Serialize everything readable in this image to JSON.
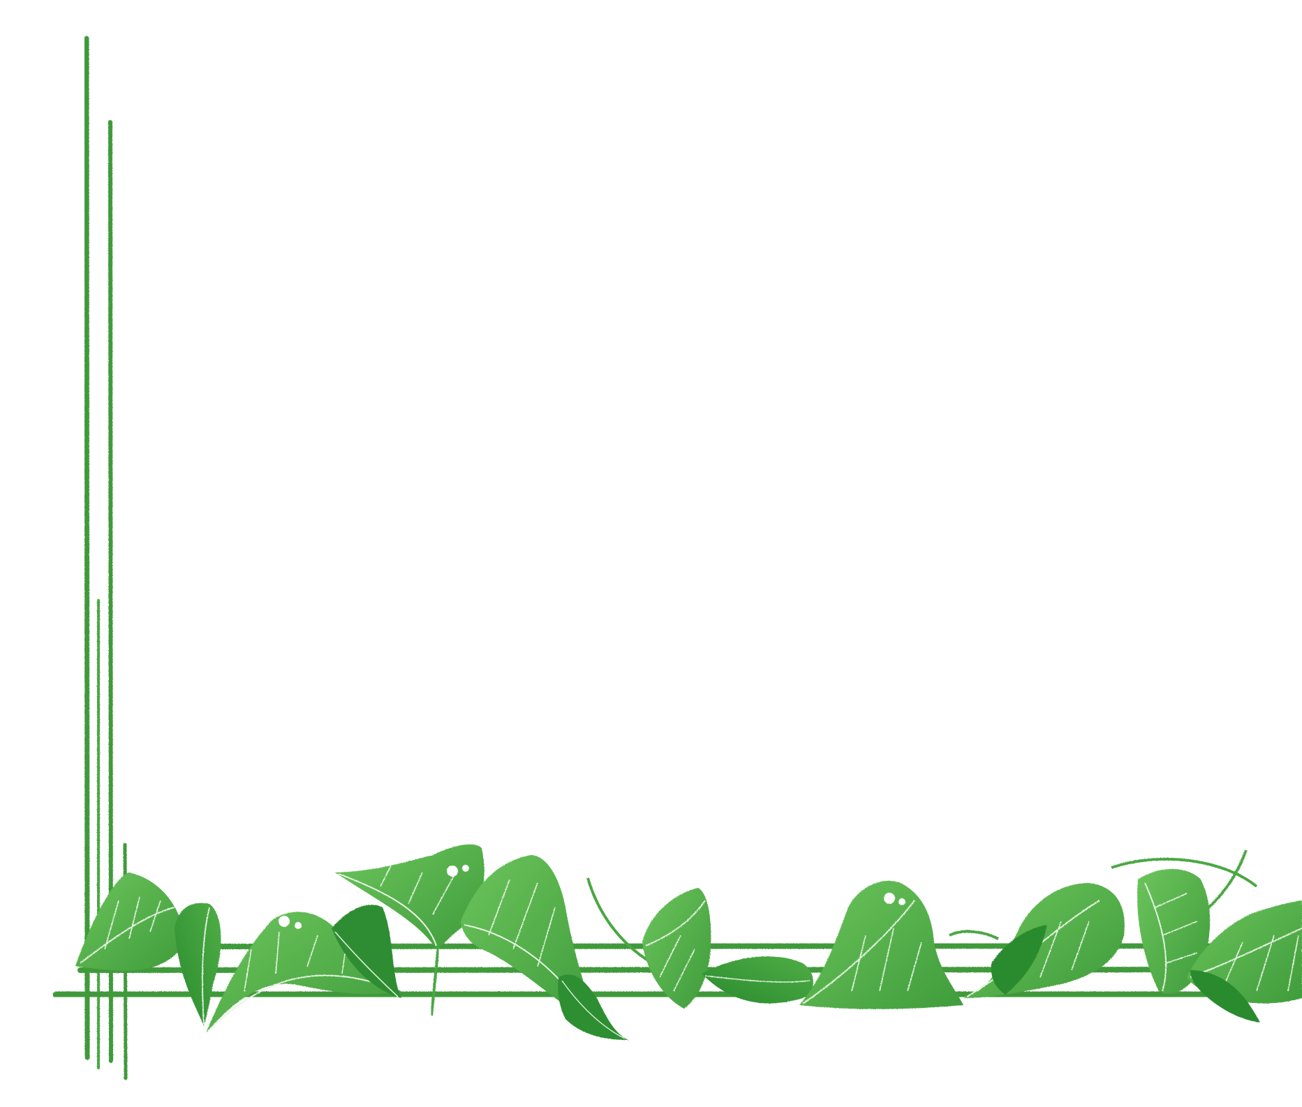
{
  "decor": {
    "stem_color": "#3f9a3a",
    "leaf_light": "#5cb84f",
    "leaf_mid": "#45a33f",
    "leaf_dark": "#2b8a2e",
    "vein_color": "#e8f5e4",
    "highlight_color": "#ffffff",
    "icons": [
      "vertical-stem-lines",
      "horizontal-stem-lines",
      "vine-leaf-garland"
    ]
  }
}
